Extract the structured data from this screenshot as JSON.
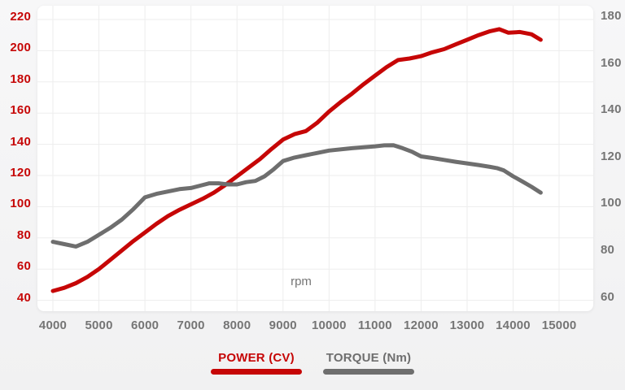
{
  "colors": {
    "power_red": "#c60606",
    "torque_gray": "#6e6e6e",
    "axis_text_gray": "#757575",
    "gridline": "#ededed",
    "panel_background": "#ffffff",
    "page_background": "#f5f5f6"
  },
  "chart_data": {
    "type": "line",
    "title": "",
    "xlabel": "rpm",
    "x_ticks": [
      4000,
      5000,
      6000,
      7000,
      8000,
      9000,
      10000,
      11000,
      12000,
      13000,
      14000,
      15000
    ],
    "left_axis": {
      "name": "POWER (CV)",
      "ticks": [
        220,
        200,
        180,
        160,
        140,
        120,
        100,
        80,
        60,
        40
      ],
      "min": 40,
      "max": 220
    },
    "right_axis": {
      "name": "TORQUE (Nm)",
      "ticks": [
        180,
        160,
        140,
        120,
        100,
        80,
        60
      ],
      "min": 60,
      "max": 180
    },
    "grid": true,
    "legend_position": "bottom",
    "series": [
      {
        "name": "POWER (CV)",
        "axis": "left",
        "color": "#c60606",
        "points": [
          [
            4000,
            46
          ],
          [
            4250,
            48
          ],
          [
            4500,
            51
          ],
          [
            4750,
            55
          ],
          [
            5000,
            60
          ],
          [
            5250,
            66
          ],
          [
            5500,
            72
          ],
          [
            5750,
            78
          ],
          [
            6000,
            83.5
          ],
          [
            6250,
            89
          ],
          [
            6500,
            94
          ],
          [
            6750,
            98
          ],
          [
            7000,
            101.5
          ],
          [
            7250,
            105
          ],
          [
            7500,
            109
          ],
          [
            7750,
            114
          ],
          [
            8000,
            119.5
          ],
          [
            8250,
            125
          ],
          [
            8500,
            130.5
          ],
          [
            8750,
            137
          ],
          [
            9000,
            143
          ],
          [
            9250,
            146.5
          ],
          [
            9500,
            148.5
          ],
          [
            9750,
            154
          ],
          [
            10000,
            161
          ],
          [
            10250,
            167
          ],
          [
            10500,
            172.5
          ],
          [
            10750,
            178.5
          ],
          [
            11000,
            184
          ],
          [
            11250,
            189.5
          ],
          [
            11500,
            194
          ],
          [
            11750,
            195
          ],
          [
            12000,
            196.5
          ],
          [
            12250,
            199
          ],
          [
            12500,
            201
          ],
          [
            12750,
            204
          ],
          [
            13000,
            207
          ],
          [
            13250,
            210
          ],
          [
            13500,
            212.5
          ],
          [
            13700,
            213.8
          ],
          [
            13900,
            211.5
          ],
          [
            14150,
            212
          ],
          [
            14400,
            210.5
          ],
          [
            14600,
            207
          ]
        ]
      },
      {
        "name": "TORQUE (Nm)",
        "axis": "right",
        "color": "#6e6e6e",
        "points": [
          [
            4000,
            85
          ],
          [
            4250,
            84
          ],
          [
            4500,
            83
          ],
          [
            4750,
            85
          ],
          [
            5000,
            88
          ],
          [
            5250,
            91
          ],
          [
            5500,
            94.5
          ],
          [
            5750,
            99
          ],
          [
            6000,
            104
          ],
          [
            6250,
            105.5
          ],
          [
            6500,
            106.5
          ],
          [
            6750,
            107.5
          ],
          [
            7000,
            108
          ],
          [
            7200,
            109
          ],
          [
            7400,
            110
          ],
          [
            7600,
            110
          ],
          [
            7800,
            109.5
          ],
          [
            8000,
            109.5
          ],
          [
            8200,
            110.5
          ],
          [
            8400,
            111
          ],
          [
            8600,
            113
          ],
          [
            8800,
            116
          ],
          [
            9000,
            119.5
          ],
          [
            9250,
            121
          ],
          [
            9500,
            122
          ],
          [
            9750,
            123
          ],
          [
            10000,
            124
          ],
          [
            10500,
            125
          ],
          [
            11000,
            125.8
          ],
          [
            11200,
            126.2
          ],
          [
            11400,
            126.3
          ],
          [
            11600,
            125
          ],
          [
            11800,
            123.5
          ],
          [
            12000,
            121.5
          ],
          [
            12250,
            120.8
          ],
          [
            12500,
            120
          ],
          [
            12750,
            119.2
          ],
          [
            13000,
            118.5
          ],
          [
            13250,
            117.8
          ],
          [
            13500,
            117
          ],
          [
            13650,
            116.5
          ],
          [
            13800,
            115.5
          ],
          [
            14000,
            113
          ],
          [
            14200,
            110.8
          ],
          [
            14400,
            108.5
          ],
          [
            14600,
            106
          ]
        ]
      }
    ],
    "legend": [
      {
        "label": "POWER (CV)",
        "color": "#c60606"
      },
      {
        "label": "TORQUE (Nm)",
        "color": "#6e6e6e"
      }
    ]
  }
}
